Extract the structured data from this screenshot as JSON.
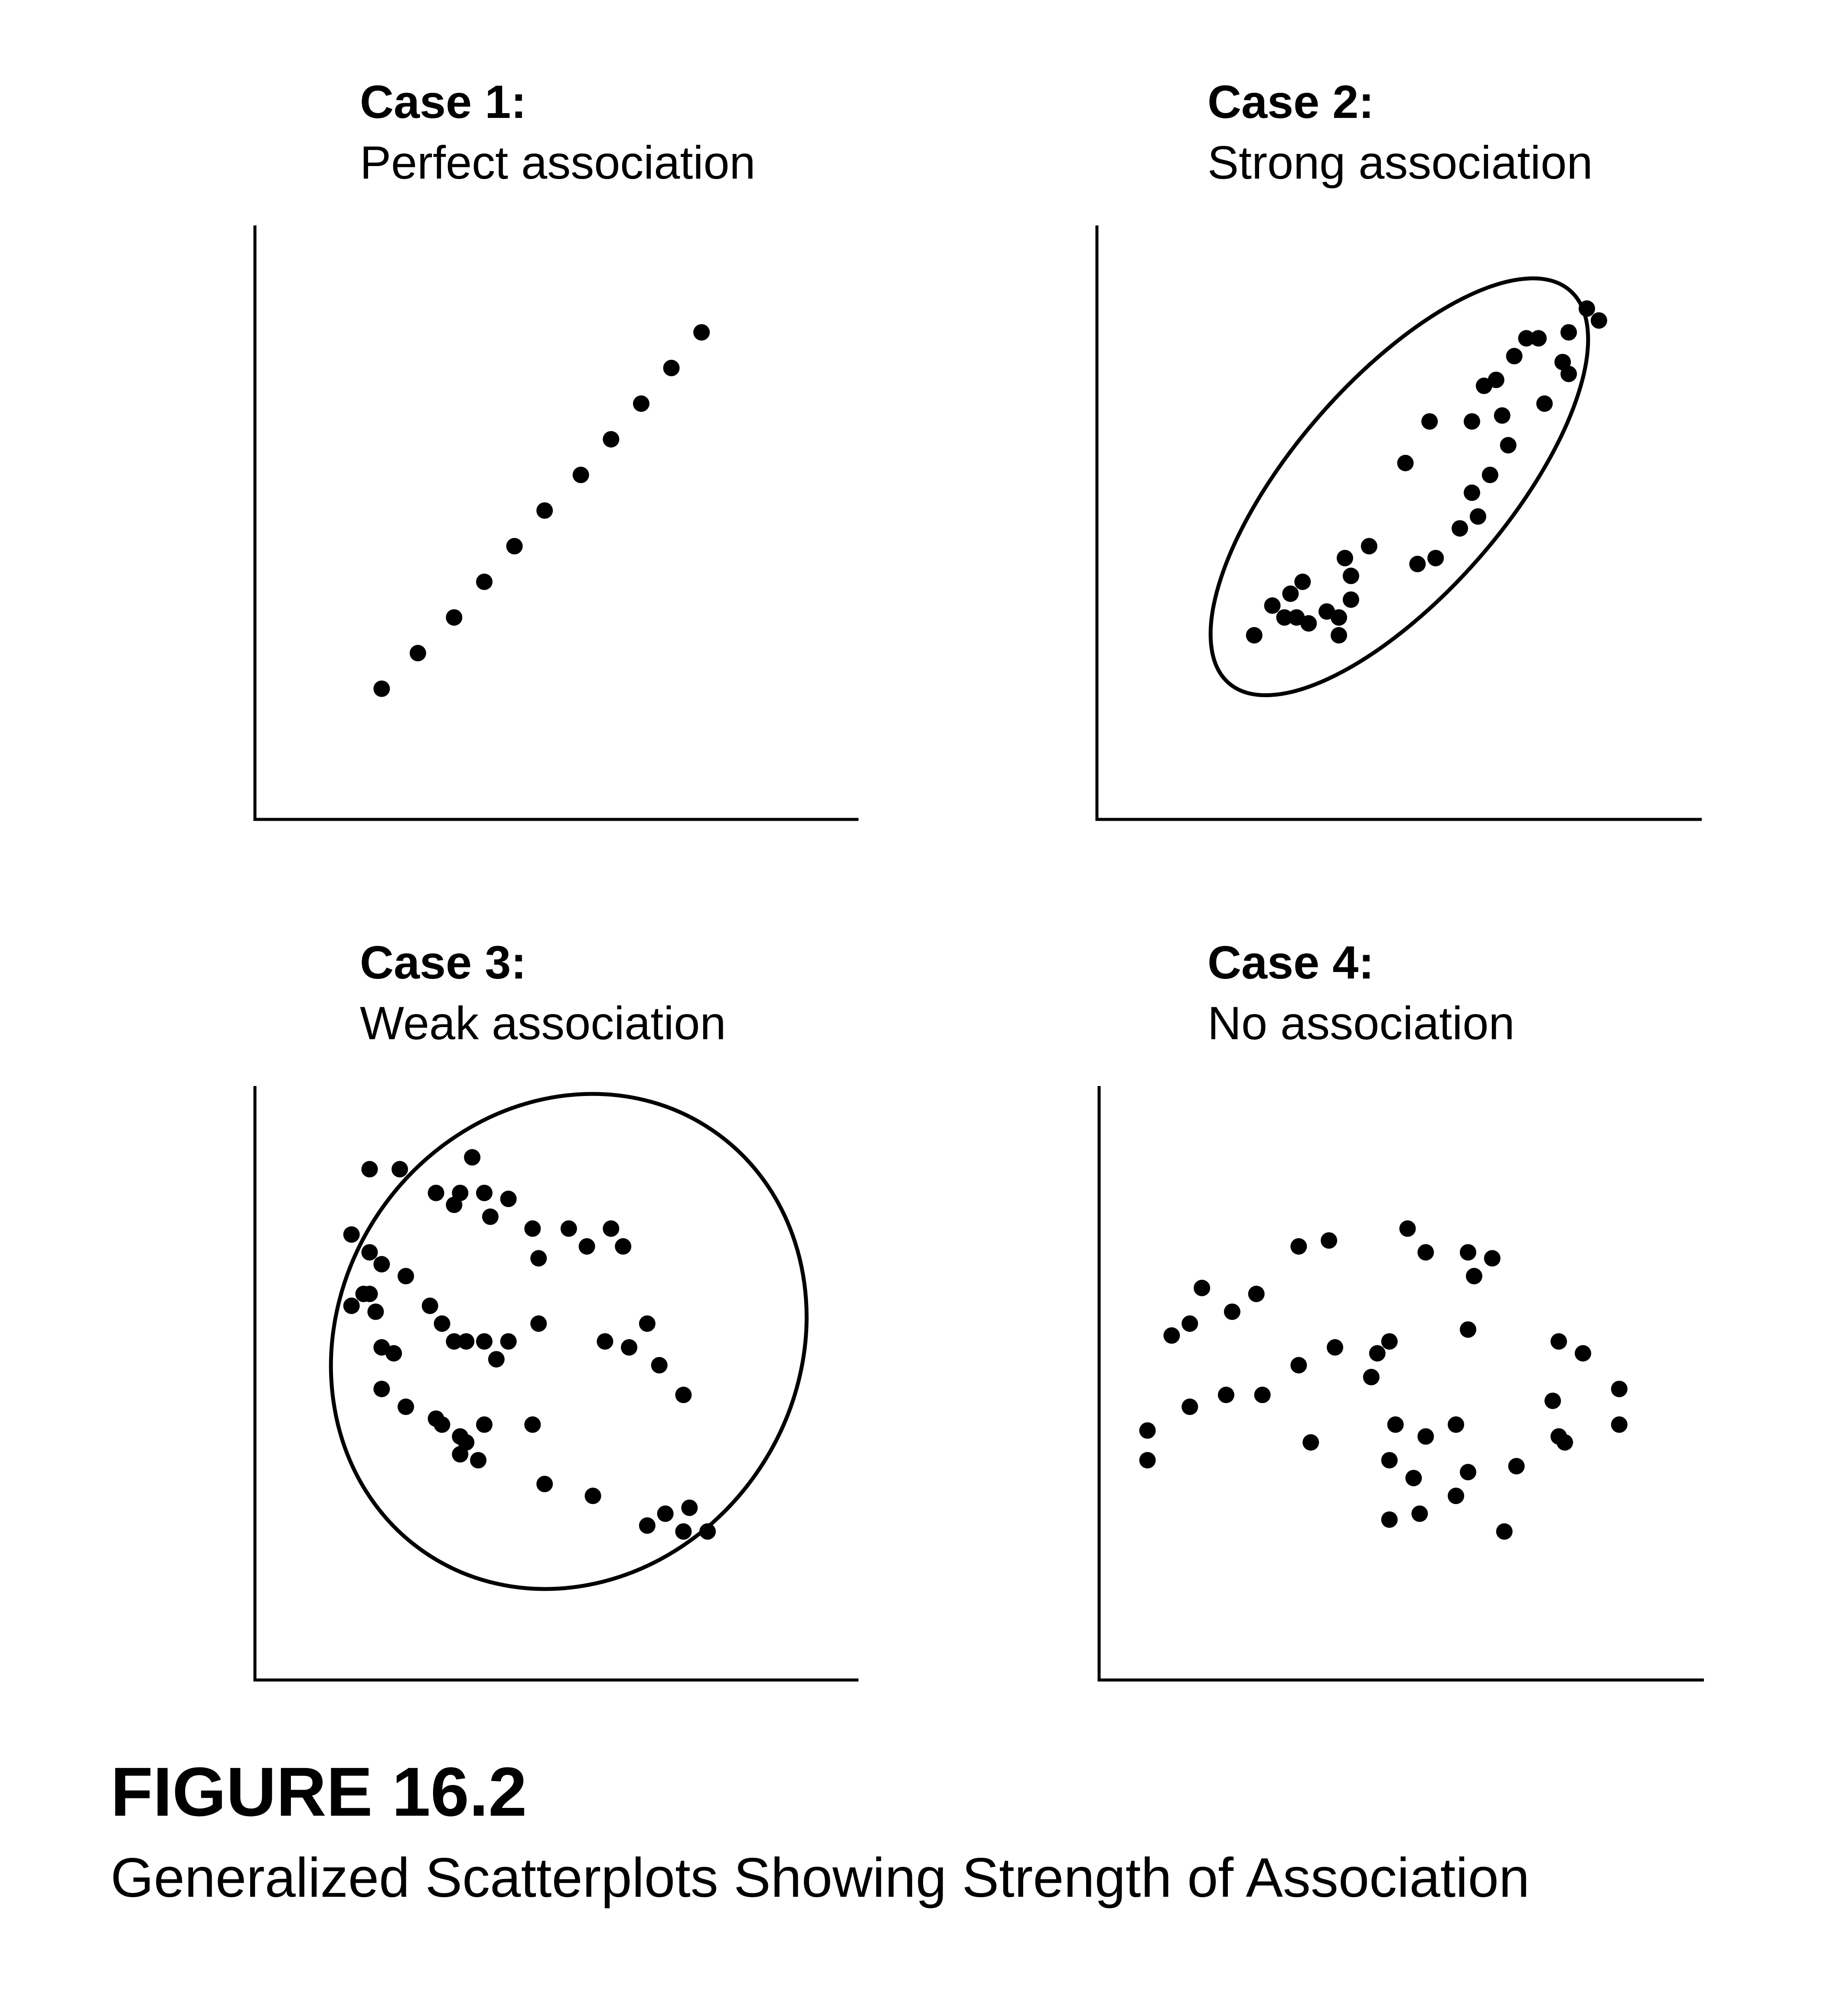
{
  "figure": {
    "number": "FIGURE 16.2",
    "caption": "Generalized Scatterplots Showing Strength of Association"
  },
  "chart_data": [
    {
      "type": "scatter",
      "title": "Case 1:",
      "subtitle": "Perfect association",
      "xlim": [
        0,
        100
      ],
      "ylim": [
        0,
        100
      ],
      "grid": false,
      "outline": null,
      "points": [
        [
          21,
          22
        ],
        [
          27,
          28
        ],
        [
          33,
          34
        ],
        [
          38,
          40
        ],
        [
          43,
          46
        ],
        [
          48,
          52
        ],
        [
          54,
          58
        ],
        [
          59,
          64
        ],
        [
          64,
          70
        ],
        [
          69,
          76
        ],
        [
          74,
          82
        ]
      ]
    },
    {
      "type": "scatter",
      "title": "Case 2:",
      "subtitle": "Strong association",
      "xlim": [
        0,
        100
      ],
      "ylim": [
        0,
        100
      ],
      "grid": false,
      "outline": {
        "shape": "ellipse",
        "cx": 50,
        "cy": 56,
        "rx": 43,
        "ry": 18,
        "angle_deg": 49
      },
      "points": [
        [
          26,
          31
        ],
        [
          29,
          36
        ],
        [
          31,
          34
        ],
        [
          33,
          34
        ],
        [
          32,
          38
        ],
        [
          34,
          40
        ],
        [
          35,
          33
        ],
        [
          38,
          35
        ],
        [
          40,
          31
        ],
        [
          40,
          34
        ],
        [
          42,
          41
        ],
        [
          42,
          37
        ],
        [
          41,
          44
        ],
        [
          45,
          46
        ],
        [
          51,
          60
        ],
        [
          53,
          43
        ],
        [
          55,
          67
        ],
        [
          56,
          44
        ],
        [
          60,
          49
        ],
        [
          62,
          67
        ],
        [
          62,
          55
        ],
        [
          63,
          51
        ],
        [
          64,
          73
        ],
        [
          65,
          58
        ],
        [
          66,
          74
        ],
        [
          67,
          68
        ],
        [
          68,
          63
        ],
        [
          69,
          78
        ],
        [
          71,
          81
        ],
        [
          73,
          81
        ],
        [
          74,
          70
        ],
        [
          77,
          77
        ],
        [
          78,
          75
        ],
        [
          78,
          82
        ],
        [
          81,
          86
        ],
        [
          83,
          84
        ]
      ]
    },
    {
      "type": "scatter",
      "title": "Case 3:",
      "subtitle": "Weak association",
      "xlim": [
        0,
        100
      ],
      "ylim": [
        0,
        100
      ],
      "grid": false,
      "outline": {
        "shape": "ellipse",
        "cx": 52,
        "cy": 57,
        "rx": 38,
        "ry": 43,
        "angle_deg": -34
      },
      "points": [
        [
          19,
          86
        ],
        [
          24,
          86
        ],
        [
          36,
          88
        ],
        [
          30,
          82
        ],
        [
          34,
          82
        ],
        [
          38,
          82
        ],
        [
          33,
          80
        ],
        [
          39,
          78
        ],
        [
          42,
          81
        ],
        [
          46,
          76
        ],
        [
          52,
          76
        ],
        [
          55,
          73
        ],
        [
          59,
          76
        ],
        [
          61,
          73
        ],
        [
          47,
          71
        ],
        [
          16,
          75
        ],
        [
          19,
          72
        ],
        [
          21,
          70
        ],
        [
          25,
          68
        ],
        [
          19,
          65
        ],
        [
          16,
          63
        ],
        [
          18,
          65
        ],
        [
          20,
          62
        ],
        [
          29,
          63
        ],
        [
          31,
          60
        ],
        [
          35,
          57
        ],
        [
          33,
          57
        ],
        [
          38,
          57
        ],
        [
          40,
          54
        ],
        [
          21,
          56
        ],
        [
          23,
          55
        ],
        [
          42,
          57
        ],
        [
          47,
          60
        ],
        [
          58,
          57
        ],
        [
          62,
          56
        ],
        [
          65,
          60
        ],
        [
          67,
          53
        ],
        [
          71,
          48
        ],
        [
          21,
          49
        ],
        [
          25,
          46
        ],
        [
          38,
          43
        ],
        [
          30,
          44
        ],
        [
          31,
          43
        ],
        [
          34,
          41
        ],
        [
          35,
          40
        ],
        [
          46,
          43
        ],
        [
          34,
          38
        ],
        [
          37,
          37
        ],
        [
          48,
          33
        ],
        [
          56,
          31
        ],
        [
          65,
          26
        ],
        [
          68,
          28
        ],
        [
          72,
          29
        ],
        [
          71,
          25
        ],
        [
          75,
          25
        ]
      ]
    },
    {
      "type": "scatter",
      "title": "Case 4:",
      "subtitle": "No association",
      "xlim": [
        0,
        100
      ],
      "ylim": [
        0,
        100
      ],
      "grid": false,
      "outline": null,
      "points": [
        [
          33,
          73
        ],
        [
          38,
          74
        ],
        [
          51,
          76
        ],
        [
          54,
          72
        ],
        [
          61,
          72
        ],
        [
          65,
          71
        ],
        [
          62,
          68
        ],
        [
          26,
          65
        ],
        [
          17,
          66
        ],
        [
          22,
          62
        ],
        [
          15,
          60
        ],
        [
          12,
          58
        ],
        [
          33,
          53
        ],
        [
          39,
          56
        ],
        [
          46,
          55
        ],
        [
          48,
          57
        ],
        [
          45,
          51
        ],
        [
          61,
          59
        ],
        [
          76,
          57
        ],
        [
          80,
          55
        ],
        [
          86,
          49
        ],
        [
          86,
          43
        ],
        [
          27,
          48
        ],
        [
          21,
          48
        ],
        [
          15,
          46
        ],
        [
          8,
          42
        ],
        [
          8,
          37
        ],
        [
          35,
          40
        ],
        [
          49,
          43
        ],
        [
          54,
          41
        ],
        [
          59,
          43
        ],
        [
          75,
          47
        ],
        [
          76,
          41
        ],
        [
          77,
          40
        ],
        [
          69,
          36
        ],
        [
          61,
          35
        ],
        [
          48,
          37
        ],
        [
          52,
          34
        ],
        [
          59,
          31
        ],
        [
          53,
          28
        ],
        [
          48,
          27
        ],
        [
          67,
          25
        ]
      ]
    }
  ]
}
